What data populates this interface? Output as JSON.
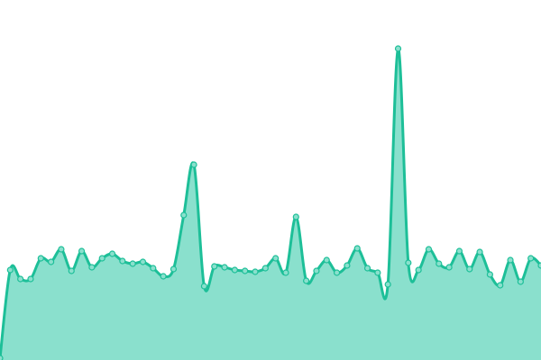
{
  "chart_data": {
    "type": "area",
    "title": "",
    "xlabel": "",
    "ylabel": "",
    "grid": false,
    "smooth": true,
    "x": [
      0,
      1,
      2,
      3,
      4,
      5,
      6,
      7,
      8,
      9,
      10,
      11,
      12,
      13,
      14,
      15,
      16,
      17,
      18,
      19,
      20,
      21,
      22,
      23,
      24,
      25,
      26,
      27,
      28,
      29,
      30,
      31,
      32,
      33,
      34,
      35,
      36,
      37,
      38,
      39,
      40,
      41,
      42,
      43,
      44,
      45,
      46,
      47,
      48,
      49,
      50,
      51,
      52,
      53
    ],
    "values": [
      2,
      100,
      90,
      90,
      113,
      109,
      123,
      99,
      121,
      103,
      113,
      118,
      110,
      107,
      109,
      102,
      93,
      101,
      161,
      217,
      82,
      104,
      103,
      100,
      99,
      98,
      102,
      113,
      97,
      159,
      88,
      99,
      111,
      97,
      105,
      124,
      102,
      97,
      84,
      346,
      108,
      100,
      123,
      107,
      103,
      121,
      101,
      120,
      95,
      83,
      111,
      87,
      113,
      105
    ],
    "ylim": [
      0,
      400
    ],
    "colors": {
      "line": "#1dbf98",
      "fill": "#8ae0cd",
      "marker": "#8ae0cd"
    }
  }
}
